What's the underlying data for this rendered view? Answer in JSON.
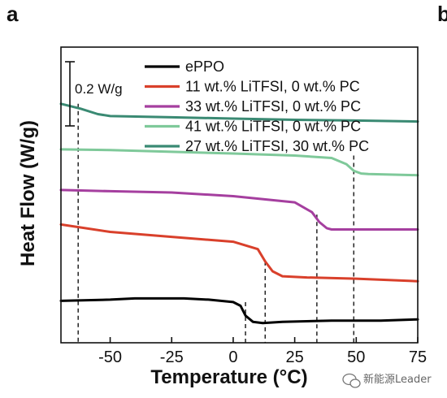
{
  "panel": {
    "label": "a",
    "next_label": "b"
  },
  "watermark": {
    "text": "新能源Leader",
    "icon": "wechat-icon"
  },
  "chart_data": {
    "type": "line",
    "xlabel": "Temperature (°C)",
    "ylabel": "Heat Flow (W/g)",
    "xlim": [
      -70,
      75
    ],
    "xticks": [
      -50,
      -25,
      0,
      25,
      50,
      75
    ],
    "y_ticks_labeled": false,
    "scale_bar": {
      "label": "0.2 W/g",
      "value": 0.2,
      "unit": "W/g"
    },
    "legend_position": "top-right",
    "grid": false,
    "series": [
      {
        "name": "ePPO",
        "color": "#000000",
        "x": [
          -70,
          -50,
          -40,
          -20,
          -10,
          0,
          3,
          5,
          8,
          12,
          20,
          40,
          60,
          75
        ],
        "y": [
          0.02,
          0.025,
          0.03,
          0.03,
          0.025,
          0.015,
          0.0,
          -0.04,
          -0.065,
          -0.07,
          -0.065,
          -0.06,
          -0.06,
          -0.055
        ]
      },
      {
        "name": "11 wt.% LiTFSI, 0 wt.% PC",
        "color": "#d9402b",
        "x": [
          -70,
          -50,
          -25,
          0,
          10,
          13,
          16,
          20,
          30,
          50,
          75
        ],
        "y": [
          0.33,
          0.3,
          0.28,
          0.26,
          0.23,
          0.18,
          0.14,
          0.12,
          0.115,
          0.11,
          0.1
        ]
      },
      {
        "name": "33 wt.% LiTFSI, 0 wt.% PC",
        "color": "#a53f9f",
        "x": [
          -70,
          -50,
          -25,
          0,
          25,
          32,
          35,
          38,
          40,
          50,
          60,
          75
        ],
        "y": [
          0.47,
          0.465,
          0.46,
          0.445,
          0.42,
          0.38,
          0.34,
          0.315,
          0.31,
          0.31,
          0.31,
          0.31
        ]
      },
      {
        "name": "41 wt.% LiTFSI, 0 wt.% PC",
        "color": "#7fc99a",
        "x": [
          -70,
          -50,
          -25,
          0,
          25,
          40,
          46,
          49,
          52,
          55,
          75
        ],
        "y": [
          0.635,
          0.632,
          0.625,
          0.618,
          0.61,
          0.6,
          0.575,
          0.548,
          0.537,
          0.535,
          0.53
        ]
      },
      {
        "name": "27 wt.% LiTFSI, 30 wt.% PC",
        "color": "#3a8a73",
        "x": [
          -70,
          -62,
          -55,
          -50,
          -25,
          0,
          25,
          50,
          75
        ],
        "y": [
          0.82,
          0.8,
          0.778,
          0.77,
          0.765,
          0.76,
          0.755,
          0.752,
          0.748
        ]
      }
    ],
    "ylim": [
      -0.15,
      1.05
    ],
    "vertical_guides": [
      {
        "x": -63,
        "y_from": -0.15,
        "y_to": 0.82
      },
      {
        "x": 5,
        "y_from": -0.15,
        "y_to": 0.015
      },
      {
        "x": 13,
        "y_from": -0.15,
        "y_to": 0.18
      },
      {
        "x": 34,
        "y_from": -0.15,
        "y_to": 0.37
      },
      {
        "x": 49,
        "y_from": -0.15,
        "y_to": 0.61
      }
    ]
  }
}
